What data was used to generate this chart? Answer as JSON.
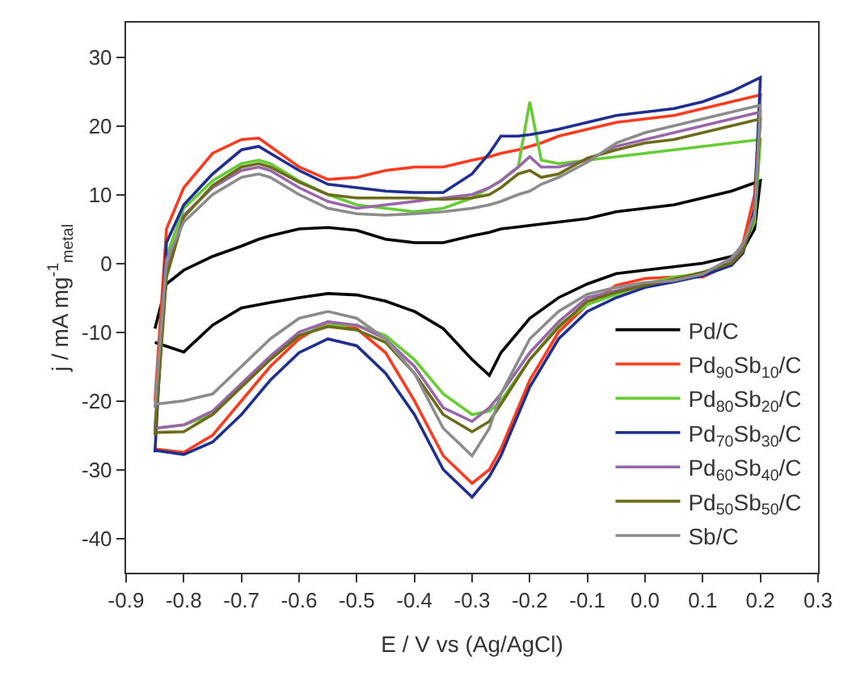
{
  "chart_data": {
    "type": "line",
    "xlabel": "E / V vs (Ag/AgCl)",
    "ylabel": "j / mA mg$^{-1}$$_{metal}$",
    "series": [
      {
        "name": "Pd/C",
        "color": "#000000",
        "x": [
          -0.85,
          -0.83,
          -0.8,
          -0.75,
          -0.7,
          -0.67,
          -0.65,
          -0.6,
          -0.55,
          -0.5,
          -0.45,
          -0.4,
          -0.35,
          -0.3,
          -0.27,
          -0.25,
          -0.22,
          -0.2,
          -0.18,
          -0.15,
          -0.1,
          -0.05,
          0,
          0.05,
          0.1,
          0.15,
          0.2,
          0.19,
          0.17,
          0.15,
          0.1,
          0.05,
          0,
          -0.05,
          -0.1,
          -0.15,
          -0.2,
          -0.25,
          -0.27,
          -0.3,
          -0.35,
          -0.4,
          -0.45,
          -0.5,
          -0.55,
          -0.6,
          -0.65,
          -0.7,
          -0.75,
          -0.8,
          -0.85
        ],
        "values": [
          -9.5,
          -3,
          -1,
          1,
          2.5,
          3.5,
          4,
          5,
          5.2,
          4.8,
          3.5,
          3,
          3,
          4,
          4.5,
          5,
          5.3,
          5.5,
          5.7,
          6,
          6.5,
          7.5,
          8,
          8.5,
          9.5,
          10.5,
          12,
          5,
          2,
          1,
          0,
          -0.5,
          -1,
          -1.5,
          -3,
          -5,
          -8,
          -13,
          -16.3,
          -14,
          -9.5,
          -7,
          -5.5,
          -4.6,
          -4.4,
          -5,
          -5.7,
          -6.5,
          -9,
          -12.9,
          -11.5
        ]
      },
      {
        "name": "Pd$_{90}$Sb$_{10}$/C",
        "color": "#ff3b1f",
        "x": [
          -0.85,
          -0.83,
          -0.8,
          -0.75,
          -0.7,
          -0.67,
          -0.65,
          -0.6,
          -0.55,
          -0.5,
          -0.45,
          -0.4,
          -0.35,
          -0.3,
          -0.27,
          -0.25,
          -0.22,
          -0.2,
          -0.18,
          -0.15,
          -0.1,
          -0.05,
          0,
          0.05,
          0.1,
          0.15,
          0.2,
          0.19,
          0.17,
          0.15,
          0.1,
          0.05,
          0,
          -0.05,
          -0.1,
          -0.15,
          -0.2,
          -0.25,
          -0.27,
          -0.3,
          -0.35,
          -0.4,
          -0.45,
          -0.5,
          -0.55,
          -0.6,
          -0.65,
          -0.7,
          -0.75,
          -0.8,
          -0.85
        ],
        "values": [
          -20,
          5,
          11,
          16,
          18,
          18.2,
          17,
          14,
          12.2,
          12.5,
          13.5,
          14,
          14,
          15,
          15.5,
          16,
          16.5,
          17,
          17.5,
          18.5,
          19.5,
          20.5,
          21,
          21.5,
          22.5,
          23.5,
          24.5,
          10,
          3,
          0,
          -2,
          -2,
          -2.2,
          -3.2,
          -6,
          -10,
          -17,
          -27,
          -30,
          -32,
          -28,
          -20,
          -13,
          -9.5,
          -8.5,
          -11,
          -15,
          -20,
          -25,
          -27.5,
          -27
        ]
      },
      {
        "name": "Pd$_{80}$Sb$_{20}$/C",
        "color": "#66cc33",
        "x": [
          -0.85,
          -0.83,
          -0.8,
          -0.75,
          -0.7,
          -0.67,
          -0.65,
          -0.6,
          -0.55,
          -0.5,
          -0.45,
          -0.4,
          -0.35,
          -0.3,
          -0.27,
          -0.25,
          -0.22,
          -0.2,
          -0.18,
          -0.15,
          -0.1,
          -0.05,
          0,
          0.05,
          0.1,
          0.15,
          0.2,
          0.19,
          0.17,
          0.15,
          0.1,
          0.05,
          0,
          -0.05,
          -0.1,
          -0.15,
          -0.2,
          -0.25,
          -0.27,
          -0.3,
          -0.35,
          -0.4,
          -0.45,
          -0.5,
          -0.55,
          -0.6,
          -0.65,
          -0.7,
          -0.75,
          -0.8,
          -0.85
        ],
        "values": [
          -23.8,
          1,
          8,
          12,
          14.5,
          15,
          14.5,
          12,
          10,
          8.5,
          8,
          7.5,
          8,
          9.5,
          11,
          12,
          14,
          23.5,
          15,
          14.5,
          15,
          15.5,
          16,
          16.5,
          17,
          17.5,
          18,
          6,
          2.5,
          0.3,
          -1.5,
          -2,
          -3,
          -4.5,
          -6,
          -9,
          -14,
          -20,
          -21.5,
          -22,
          -19,
          -14,
          -10.5,
          -9,
          -9,
          -10.5,
          -14,
          -18,
          -22,
          -23.5,
          -24
        ]
      },
      {
        "name": "Pd$_{70}$Sb$_{30}$/C",
        "color": "#1f2f8f",
        "x": [
          -0.85,
          -0.83,
          -0.8,
          -0.75,
          -0.7,
          -0.67,
          -0.65,
          -0.6,
          -0.55,
          -0.5,
          -0.45,
          -0.4,
          -0.35,
          -0.3,
          -0.27,
          -0.25,
          -0.22,
          -0.2,
          -0.18,
          -0.15,
          -0.1,
          -0.05,
          0,
          0.05,
          0.1,
          0.15,
          0.2,
          0.19,
          0.17,
          0.15,
          0.1,
          0.05,
          0,
          -0.05,
          -0.1,
          -0.15,
          -0.2,
          -0.25,
          -0.27,
          -0.3,
          -0.35,
          -0.4,
          -0.45,
          -0.5,
          -0.55,
          -0.6,
          -0.65,
          -0.7,
          -0.75,
          -0.8,
          -0.85
        ],
        "values": [
          -27.5,
          3,
          8.5,
          13,
          16.5,
          17,
          16,
          13.5,
          11.5,
          11,
          10.5,
          10.3,
          10.3,
          13,
          16,
          18.5,
          18.5,
          18.7,
          19,
          19.5,
          20.5,
          21.5,
          22,
          22.5,
          23.5,
          25,
          27,
          8,
          1.5,
          -0.3,
          -1.8,
          -2.7,
          -3.5,
          -5,
          -7,
          -11,
          -18,
          -28,
          -31,
          -34,
          -30,
          -22,
          -16,
          -12,
          -11,
          -13,
          -17,
          -22,
          -26,
          -27.8,
          -27.2
        ]
      },
      {
        "name": "Pd$_{60}$Sb$_{40}$/C",
        "color": "#9966aa",
        "x": [
          -0.85,
          -0.83,
          -0.8,
          -0.75,
          -0.7,
          -0.67,
          -0.65,
          -0.6,
          -0.55,
          -0.5,
          -0.45,
          -0.4,
          -0.35,
          -0.3,
          -0.27,
          -0.25,
          -0.22,
          -0.2,
          -0.18,
          -0.15,
          -0.1,
          -0.05,
          0,
          0.05,
          0.1,
          0.15,
          0.2,
          0.19,
          0.17,
          0.15,
          0.1,
          0.05,
          0,
          -0.05,
          -0.1,
          -0.15,
          -0.2,
          -0.25,
          -0.27,
          -0.3,
          -0.35,
          -0.4,
          -0.45,
          -0.5,
          -0.55,
          -0.6,
          -0.65,
          -0.7,
          -0.75,
          -0.8,
          -0.85
        ],
        "values": [
          -24.3,
          -1,
          7,
          11,
          13.5,
          14,
          13.5,
          11,
          9,
          8,
          8.5,
          9,
          9.5,
          10,
          11,
          12,
          14,
          15.5,
          14,
          14,
          15,
          17,
          18,
          19,
          20,
          21,
          22,
          7,
          2.2,
          0.6,
          -1.5,
          -2.5,
          -3,
          -4,
          -5,
          -8.5,
          -13,
          -19,
          -21,
          -23,
          -21,
          -15,
          -11,
          -9,
          -8.5,
          -10,
          -13.5,
          -17.5,
          -21.5,
          -23.5,
          -24
        ]
      },
      {
        "name": "Pd$_{50}$Sb$_{50}$/C",
        "color": "#6b6b1a",
        "x": [
          -0.85,
          -0.83,
          -0.8,
          -0.75,
          -0.7,
          -0.67,
          -0.65,
          -0.6,
          -0.55,
          -0.5,
          -0.45,
          -0.4,
          -0.35,
          -0.3,
          -0.27,
          -0.25,
          -0.22,
          -0.2,
          -0.18,
          -0.15,
          -0.1,
          -0.05,
          0,
          0.05,
          0.1,
          0.15,
          0.2,
          0.19,
          0.17,
          0.15,
          0.1,
          0.05,
          0,
          -0.05,
          -0.1,
          -0.15,
          -0.2,
          -0.25,
          -0.27,
          -0.3,
          -0.35,
          -0.4,
          -0.45,
          -0.5,
          -0.55,
          -0.6,
          -0.65,
          -0.7,
          -0.75,
          -0.8,
          -0.85
        ],
        "values": [
          -25,
          -2,
          6.7,
          11.3,
          14,
          14.5,
          14,
          11.8,
          10,
          9.5,
          9.5,
          9.5,
          9.3,
          9.5,
          10,
          11,
          13,
          13.5,
          12.5,
          13,
          15.3,
          16.5,
          17.5,
          18,
          19,
          20,
          21,
          7,
          1.8,
          0,
          -1.3,
          -2.3,
          -3.2,
          -4.2,
          -5.5,
          -9.3,
          -14,
          -20.5,
          -23,
          -24.5,
          -22,
          -16,
          -11.5,
          -9.7,
          -9.2,
          -10.5,
          -14,
          -18,
          -22,
          -24.5,
          -24.6
        ]
      },
      {
        "name": "Sb/C",
        "color": "#8c8c8c",
        "x": [
          -0.85,
          -0.83,
          -0.8,
          -0.75,
          -0.7,
          -0.67,
          -0.65,
          -0.6,
          -0.55,
          -0.5,
          -0.45,
          -0.4,
          -0.35,
          -0.3,
          -0.27,
          -0.25,
          -0.22,
          -0.2,
          -0.18,
          -0.15,
          -0.1,
          -0.05,
          0,
          0.05,
          0.1,
          0.15,
          0.2,
          0.19,
          0.17,
          0.15,
          0.1,
          0.05,
          0,
          -0.05,
          -0.1,
          -0.15,
          -0.2,
          -0.25,
          -0.27,
          -0.3,
          -0.35,
          -0.4,
          -0.45,
          -0.5,
          -0.55,
          -0.6,
          -0.65,
          -0.7,
          -0.75,
          -0.8,
          -0.85
        ],
        "values": [
          -21,
          0.5,
          6,
          10,
          12.5,
          13,
          12.5,
          10,
          8,
          7.2,
          7,
          7.2,
          7.5,
          8,
          8.5,
          9,
          10,
          10.5,
          11.5,
          12.5,
          14.7,
          17.5,
          19,
          20,
          21,
          22,
          23,
          7,
          2.8,
          0.8,
          -1.6,
          -2.5,
          -2.8,
          -3.5,
          -4.5,
          -7,
          -11,
          -19,
          -24,
          -28,
          -24,
          -16,
          -11,
          -8,
          -7,
          -8,
          -11,
          -15,
          -19,
          -20,
          -20.5
        ]
      }
    ],
    "xlim": [
      -0.9,
      0.3
    ],
    "xticks": [
      -0.9,
      -0.8,
      -0.7,
      -0.6,
      -0.5,
      -0.4,
      -0.3,
      -0.2,
      -0.1,
      {
        "value": 0,
        "label": "0.0"
      },
      0.1,
      0.2,
      0.3
    ],
    "ylim": [
      -45,
      35
    ],
    "yticks": [
      -40,
      -30,
      -20,
      -10,
      0,
      10,
      20,
      30
    ],
    "legend": "bottom right",
    "marker": "none",
    "line_style": "solid"
  }
}
